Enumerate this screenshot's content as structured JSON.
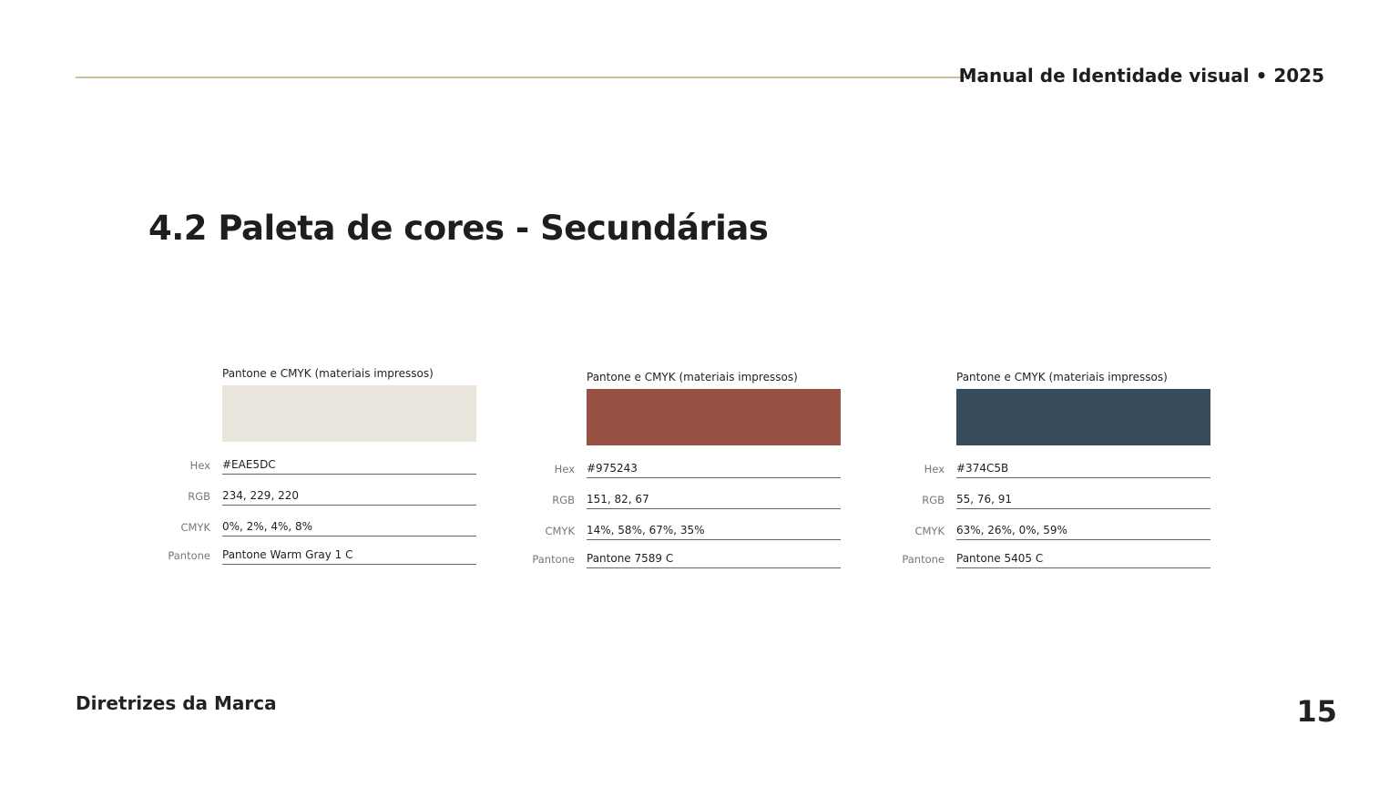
{
  "header": {
    "title": "Manual de Identidade visual • 2025"
  },
  "title": "4.2 Paleta de cores - Secundárias",
  "palettes": [
    {
      "caption": "Pantone e CMYK (materiais impressos)",
      "rows": [
        {
          "label": "Hex",
          "value": "#EAE5DC"
        },
        {
          "label": "RGB",
          "value": "234, 229, 220"
        },
        {
          "label": "CMYK",
          "value": "0%, 2%, 4%, 8%"
        },
        {
          "label": "Pantone",
          "value": "Pantone Warm Gray 1 C"
        }
      ]
    },
    {
      "caption": "Pantone e CMYK (materiais impressos)",
      "rows": [
        {
          "label": "Hex",
          "value": "#975243"
        },
        {
          "label": "RGB",
          "value": "151, 82, 67"
        },
        {
          "label": "CMYK",
          "value": "14%, 58%, 67%, 35%"
        },
        {
          "label": "Pantone",
          "value": "Pantone 7589 C"
        }
      ]
    },
    {
      "caption": "Pantone e CMYK (materiais impressos)",
      "rows": [
        {
          "label": "Hex",
          "value": "#374C5B"
        },
        {
          "label": "RGB",
          "value": "55, 76, 91"
        },
        {
          "label": "CMYK",
          "value": "63%, 26%, 0%, 59%"
        },
        {
          "label": "Pantone",
          "value": "Pantone 5405 C"
        }
      ]
    }
  ],
  "footer": {
    "left": "Diretrizes da Marca",
    "page": "15"
  }
}
